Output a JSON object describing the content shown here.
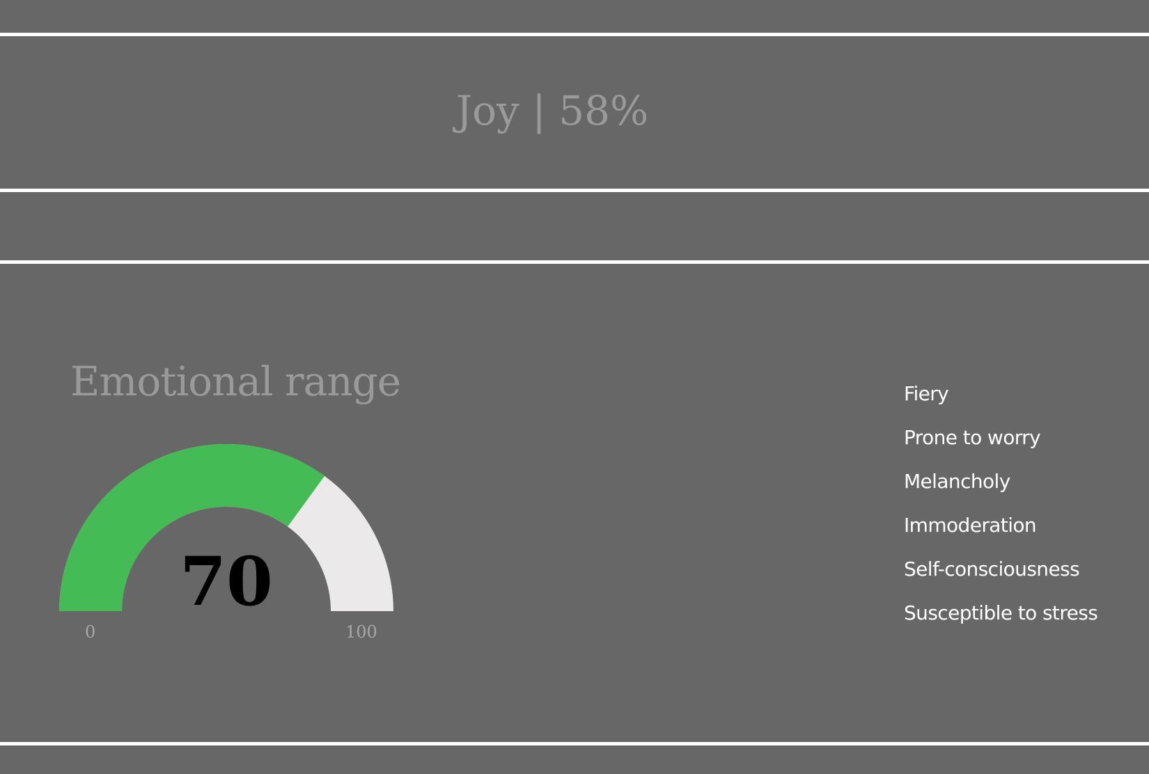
{
  "header": {
    "headline": "Joy | 58%"
  },
  "emotional_range": {
    "title": "Emotional range",
    "gauge": {
      "value": 70,
      "value_label": "70",
      "min_label": "0",
      "max_label": "100",
      "min": 0,
      "max": 100,
      "fill_color": "#44bb55",
      "track_color": "#ebe9ea"
    },
    "facets": [
      {
        "label": "Fiery"
      },
      {
        "label": "Prone to worry"
      },
      {
        "label": "Melancholy"
      },
      {
        "label": "Immoderation"
      },
      {
        "label": "Self-consciousness"
      },
      {
        "label": "Susceptible to stress"
      }
    ]
  },
  "colors": {
    "background": "#676767",
    "divider": "#ffffff",
    "muted_text": "#9a9a9a",
    "facet_text": "#ffffff"
  }
}
